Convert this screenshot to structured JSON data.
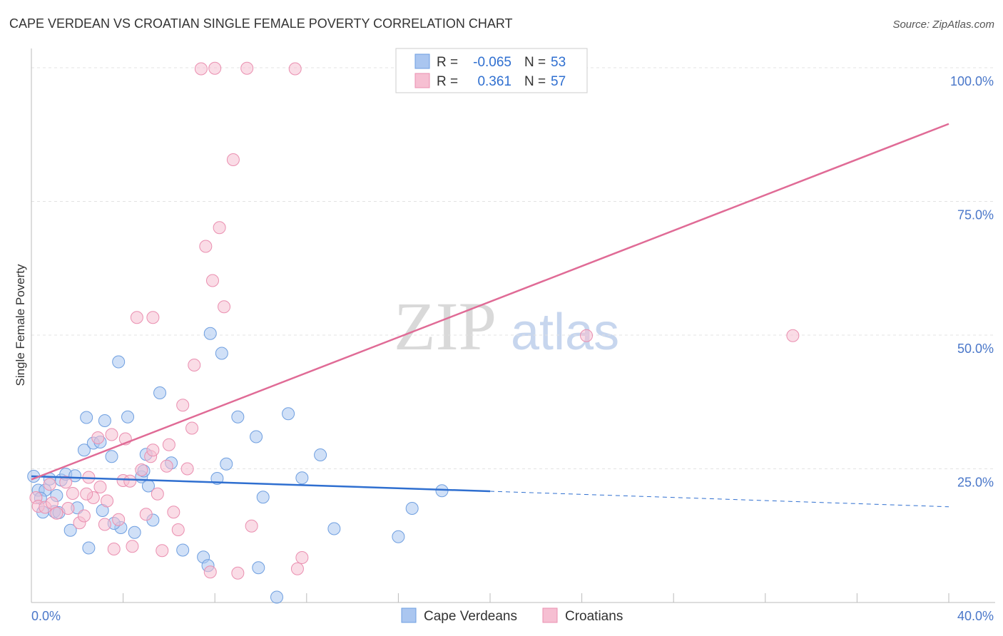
{
  "chart_data": {
    "type": "scatter",
    "title": "CAPE VERDEAN VS CROATIAN SINGLE FEMALE POVERTY CORRELATION CHART",
    "source": "Source: ZipAtlas.com",
    "xlabel": "",
    "ylabel": "Single Female Poverty",
    "xlim": [
      0,
      40
    ],
    "ylim": [
      0,
      102
    ],
    "x_tick_labels": [
      {
        "value": 0,
        "label": "0.0%"
      },
      {
        "value": 40,
        "label": "40.0%"
      }
    ],
    "y_tick_labels": [
      {
        "value": 25,
        "label": "25.0%"
      },
      {
        "value": 50,
        "label": "50.0%"
      },
      {
        "value": 75,
        "label": "75.0%"
      },
      {
        "value": 100,
        "label": "100.0%"
      }
    ],
    "watermark": {
      "zip": "ZIP",
      "atlas": "atlas"
    },
    "legend_box": [
      {
        "r_label": "R =",
        "r_value": "-0.065",
        "n_label": "N =",
        "n_value": "53",
        "color": "#8fb4ec"
      },
      {
        "r_label": "R =",
        "r_value": "0.361",
        "n_label": "N =",
        "n_value": "57",
        "color": "#f1a5c0"
      }
    ],
    "series": [
      {
        "name": "Cape Verdeans",
        "fill": "#aac6f0",
        "stroke": "#6f9fe0",
        "line_color": "#2f6fd0",
        "trend": {
          "x0": 0,
          "y0": 23.6,
          "x1": 20,
          "y1": 20.8,
          "dash_to_x": 40,
          "dash_to_y": 17.9
        },
        "points": [
          [
            0.1,
            23.6
          ],
          [
            0.3,
            21.0
          ],
          [
            0.5,
            16.9
          ],
          [
            0.6,
            21.0
          ],
          [
            0.8,
            23.1
          ],
          [
            1.0,
            17.0
          ],
          [
            1.1,
            20.0
          ],
          [
            1.3,
            22.9
          ],
          [
            1.5,
            24.0
          ],
          [
            1.7,
            13.5
          ],
          [
            1.9,
            23.7
          ],
          [
            2.0,
            17.7
          ],
          [
            2.3,
            28.5
          ],
          [
            2.4,
            34.6
          ],
          [
            2.5,
            10.2
          ],
          [
            2.7,
            29.8
          ],
          [
            3.0,
            30.0
          ],
          [
            3.1,
            17.2
          ],
          [
            3.2,
            34.0
          ],
          [
            3.5,
            27.3
          ],
          [
            3.8,
            45.0
          ],
          [
            3.9,
            14.0
          ],
          [
            4.2,
            34.7
          ],
          [
            4.5,
            13.1
          ],
          [
            4.8,
            23.5
          ],
          [
            4.9,
            24.6
          ],
          [
            5.0,
            27.7
          ],
          [
            5.1,
            21.8
          ],
          [
            5.3,
            15.4
          ],
          [
            5.6,
            39.2
          ],
          [
            6.1,
            26.1
          ],
          [
            6.6,
            9.8
          ],
          [
            7.5,
            8.5
          ],
          [
            7.7,
            6.9
          ],
          [
            7.8,
            50.3
          ],
          [
            8.1,
            23.2
          ],
          [
            8.3,
            46.6
          ],
          [
            8.5,
            25.9
          ],
          [
            9.0,
            34.7
          ],
          [
            9.8,
            31.0
          ],
          [
            9.9,
            6.5
          ],
          [
            10.1,
            19.7
          ],
          [
            10.7,
            1.0
          ],
          [
            11.2,
            35.3
          ],
          [
            11.8,
            23.3
          ],
          [
            12.6,
            27.6
          ],
          [
            13.2,
            13.8
          ],
          [
            16.0,
            12.3
          ],
          [
            16.6,
            17.6
          ],
          [
            17.9,
            20.9
          ],
          [
            1.2,
            16.8
          ],
          [
            0.4,
            19.5
          ],
          [
            3.6,
            14.8
          ]
        ]
      },
      {
        "name": "Croatians",
        "fill": "#f6bfd2",
        "stroke": "#ea8fb0",
        "line_color": "#e06b96",
        "trend": {
          "x0": 0,
          "y0": 23.0,
          "x1": 40,
          "y1": 89.5
        },
        "points": [
          [
            0.2,
            19.6
          ],
          [
            0.3,
            18.0
          ],
          [
            0.6,
            17.8
          ],
          [
            0.9,
            18.6
          ],
          [
            1.1,
            16.7
          ],
          [
            1.5,
            22.5
          ],
          [
            1.8,
            20.4
          ],
          [
            2.1,
            14.9
          ],
          [
            2.3,
            16.2
          ],
          [
            2.5,
            23.4
          ],
          [
            2.7,
            19.6
          ],
          [
            2.9,
            30.8
          ],
          [
            3.0,
            21.6
          ],
          [
            3.2,
            14.6
          ],
          [
            3.3,
            19.0
          ],
          [
            3.5,
            31.4
          ],
          [
            3.6,
            10.0
          ],
          [
            3.8,
            15.5
          ],
          [
            4.0,
            22.8
          ],
          [
            4.1,
            30.6
          ],
          [
            4.4,
            10.5
          ],
          [
            4.6,
            53.3
          ],
          [
            4.8,
            24.8
          ],
          [
            5.0,
            16.5
          ],
          [
            5.2,
            27.3
          ],
          [
            5.3,
            28.5
          ],
          [
            5.5,
            20.3
          ],
          [
            5.7,
            9.7
          ],
          [
            5.9,
            25.5
          ],
          [
            6.0,
            29.5
          ],
          [
            6.2,
            16.9
          ],
          [
            6.4,
            13.6
          ],
          [
            6.6,
            36.9
          ],
          [
            7.0,
            32.6
          ],
          [
            7.1,
            44.4
          ],
          [
            7.4,
            99.8
          ],
          [
            7.6,
            66.6
          ],
          [
            7.8,
            5.7
          ],
          [
            7.9,
            60.2
          ],
          [
            8.0,
            99.9
          ],
          [
            8.2,
            70.1
          ],
          [
            8.4,
            55.3
          ],
          [
            8.8,
            82.8
          ],
          [
            9.0,
            5.5
          ],
          [
            9.4,
            99.9
          ],
          [
            9.6,
            14.3
          ],
          [
            11.5,
            99.8
          ],
          [
            11.6,
            6.3
          ],
          [
            11.8,
            8.4
          ],
          [
            24.2,
            49.9
          ],
          [
            33.2,
            49.9
          ],
          [
            0.8,
            22.1
          ],
          [
            1.6,
            17.6
          ],
          [
            5.3,
            53.3
          ],
          [
            2.4,
            20.3
          ],
          [
            4.3,
            22.7
          ],
          [
            6.8,
            25.0
          ]
        ]
      }
    ]
  }
}
